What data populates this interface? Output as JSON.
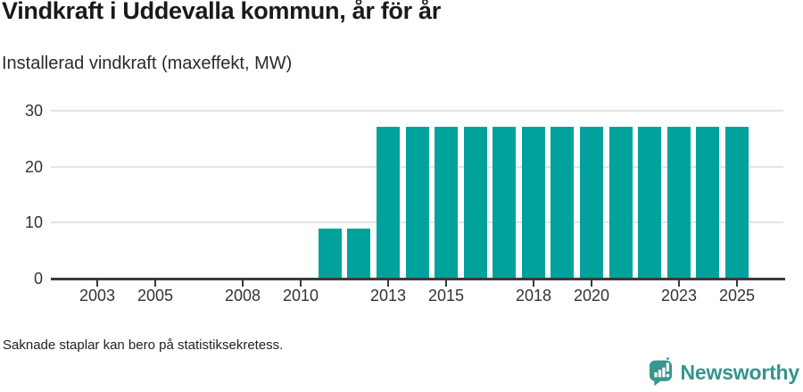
{
  "header": {
    "title": "Vindkraft i Uddevalla kommun, år för år",
    "subtitle": "Installerad vindkraft (maxeffekt, MW)"
  },
  "chart_data": {
    "type": "bar",
    "title": "Vindkraft i Uddevalla kommun, år för år",
    "subtitle": "Installerad vindkraft (maxeffekt, MW)",
    "ylabel": "Installerad vindkraft (maxeffekt, MW)",
    "xlabel": "",
    "categories": [
      2011,
      2012,
      2013,
      2014,
      2015,
      2016,
      2017,
      2018,
      2019,
      2020,
      2021,
      2022,
      2023,
      2024,
      2025
    ],
    "values": [
      9,
      9,
      27.2,
      27.2,
      27.2,
      27.2,
      27.2,
      27.2,
      27.2,
      27.2,
      27.2,
      27.2,
      27.2,
      27.2,
      27.2
    ],
    "xticks": [
      2003,
      2005,
      2008,
      2010,
      2013,
      2015,
      2018,
      2020,
      2023,
      2025
    ],
    "yticks": [
      0,
      10,
      20,
      30
    ],
    "ylim": [
      0,
      30
    ],
    "xlim": [
      2001.4,
      2026.6
    ],
    "bar_color": "#00a29b",
    "grid": true,
    "legend": "none",
    "note": "Bars missing before 2011; short bars 2011-2012, constant level 2013-2025"
  },
  "footer": {
    "note": "Saknade staplar kan bero på statistiksekretess."
  },
  "branding": {
    "name": "Newsworthy",
    "color": "#35948c",
    "icon": "newsworthy-speech-bubble-barchart-icon",
    "icon_color": "#3a968e"
  }
}
